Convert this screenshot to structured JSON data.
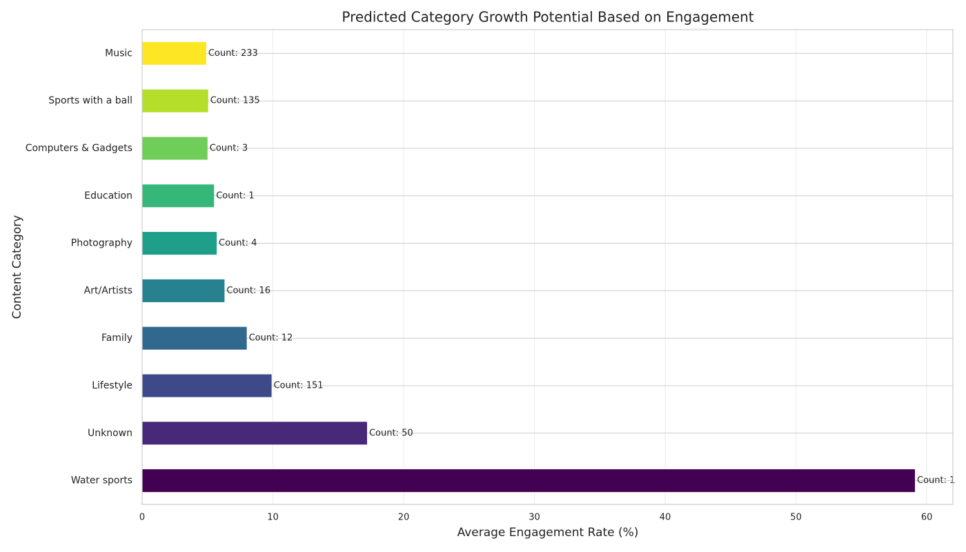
{
  "chart_data": {
    "type": "barh",
    "title": "Predicted Category Growth Potential Based on Engagement",
    "x_label": "Average Engagement Rate (%)",
    "y_label": "Content Category",
    "categories": [
      "Water sports",
      "Unknown",
      "Lifestyle",
      "Family",
      "Art/Artists",
      "Photography",
      "Education",
      "Computers & Gadgets",
      "Sports with a ball",
      "Music"
    ],
    "values": [
      59.1,
      17.2,
      9.9,
      8.0,
      6.3,
      5.7,
      5.5,
      5.0,
      5.05,
      4.9
    ],
    "value_labels": [
      "Count: 1",
      "Count: 50",
      "Count: 151",
      "Count: 12",
      "Count: 16",
      "Count: 4",
      "Count: 1",
      "Count: 3",
      "Count: 135",
      "Count: 233"
    ],
    "colors": [
      "#440154",
      "#482878",
      "#3e4989",
      "#31688e",
      "#26828e",
      "#1f9e89",
      "#35b779",
      "#6ece58",
      "#b5de2b",
      "#fde725"
    ],
    "xlim": [
      0,
      62
    ],
    "xticks": [
      0,
      10,
      20,
      30,
      40,
      50,
      60
    ],
    "grid": true
  }
}
